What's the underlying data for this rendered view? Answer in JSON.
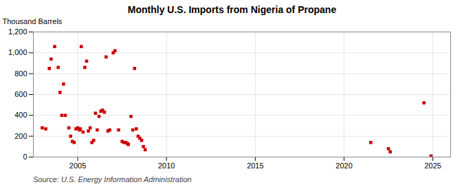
{
  "chart_data": {
    "type": "scatter",
    "title": "Monthly U.S. Imports from Nigeria of Propane",
    "ylabel": "Thousand Barrels",
    "annotations": [
      "Source: U.S. Energy Information Administration"
    ],
    "color": "#cc0000",
    "marker": "square",
    "grid": true,
    "xlim": [
      2002.5,
      2026.0
    ],
    "ylim": [
      0,
      1200
    ],
    "xticks": [
      2005,
      2010,
      2015,
      2020,
      2025
    ],
    "yticks": [
      0,
      200,
      400,
      600,
      800,
      {
        "value": 1000,
        "label": "1,000"
      },
      {
        "value": 1200,
        "label": "1,200"
      }
    ],
    "x": [
      2003.0,
      2003.2,
      2003.4,
      2003.5,
      2003.7,
      2003.9,
      2004.0,
      2004.1,
      2004.2,
      2004.3,
      2004.5,
      2004.6,
      2004.7,
      2004.8,
      2004.9,
      2005.0,
      2005.1,
      2005.15,
      2005.2,
      2005.3,
      2005.4,
      2005.5,
      2005.6,
      2005.7,
      2005.8,
      2005.9,
      2006.0,
      2006.1,
      2006.2,
      2006.3,
      2006.4,
      2006.5,
      2006.6,
      2006.7,
      2006.8,
      2007.0,
      2007.1,
      2007.3,
      2007.5,
      2007.6,
      2007.7,
      2007.8,
      2007.85,
      2008.0,
      2008.1,
      2008.2,
      2008.3,
      2008.4,
      2008.5,
      2008.6,
      2008.7,
      2008.8,
      2021.5,
      2022.5,
      2022.6,
      2024.5,
      2024.9
    ],
    "values": [
      280,
      270,
      850,
      940,
      1060,
      860,
      620,
      400,
      700,
      400,
      280,
      200,
      150,
      140,
      270,
      280,
      260,
      270,
      1060,
      240,
      860,
      920,
      250,
      280,
      140,
      160,
      420,
      260,
      390,
      440,
      450,
      430,
      960,
      250,
      260,
      1000,
      1020,
      260,
      150,
      140,
      140,
      130,
      120,
      390,
      260,
      850,
      270,
      200,
      180,
      160,
      100,
      70,
      140,
      80,
      50,
      520,
      10
    ]
  }
}
